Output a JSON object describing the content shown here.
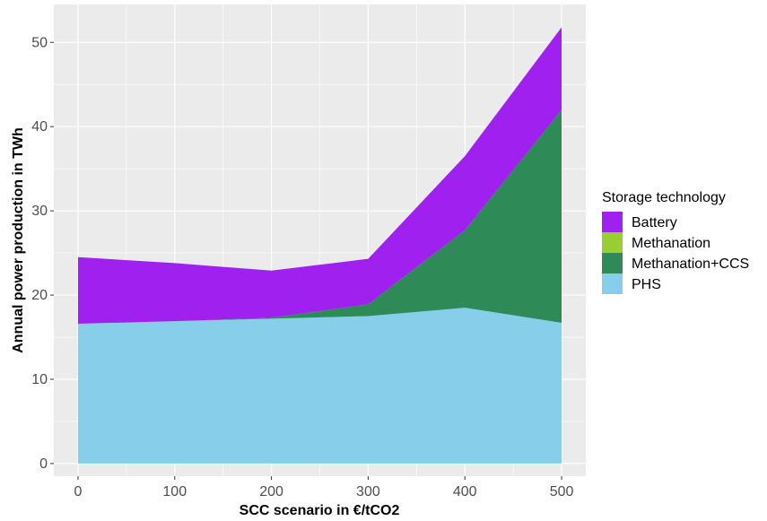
{
  "chart_data": {
    "type": "area",
    "stacked": true,
    "xlabel": "SCC scenario in €/tCO2",
    "ylabel": "Annual power production in TWh",
    "x": [
      0,
      100,
      200,
      300,
      400,
      500
    ],
    "x_ticks": [
      "0",
      "100",
      "200",
      "300",
      "400",
      "500"
    ],
    "y_ticks": [
      "0",
      "10",
      "20",
      "30",
      "40",
      "50"
    ],
    "xlim": [
      -25,
      525
    ],
    "ylim": [
      -1.5,
      54.5
    ],
    "grid": true,
    "legend": {
      "title": "Storage technology",
      "position": "right"
    },
    "series": [
      {
        "name": "Battery",
        "color": "#A020F0",
        "values": [
          7.9,
          6.9,
          5.6,
          5.4,
          8.8,
          9.8
        ]
      },
      {
        "name": "Methanation",
        "color": "#9ACD32",
        "values": [
          0,
          0,
          0,
          0,
          0,
          0
        ]
      },
      {
        "name": "Methanation+CCS",
        "color": "#2E8B57",
        "values": [
          0,
          0,
          0.1,
          1.4,
          9.2,
          25.3
        ]
      },
      {
        "name": "PHS",
        "color": "#87CEEB",
        "values": [
          16.6,
          16.9,
          17.2,
          17.5,
          18.5,
          16.7
        ]
      }
    ]
  }
}
